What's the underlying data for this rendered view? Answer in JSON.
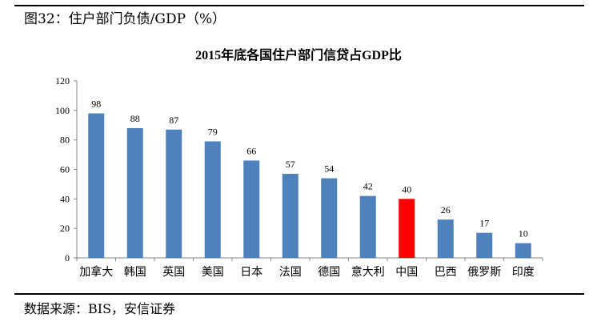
{
  "caption": "图32：住户部门负债/GDP（%）",
  "source": "数据来源：BIS，安信证券",
  "colors": {
    "bar": "#4F81BD",
    "highlight": "#FF0000"
  },
  "chart_data": {
    "type": "bar",
    "title": "2015年底各国住户部门信贷占GDP比",
    "categories": [
      "加拿大",
      "韩国",
      "英国",
      "美国",
      "日本",
      "法国",
      "德国",
      "意大利",
      "中国",
      "巴西",
      "俄罗斯",
      "印度"
    ],
    "values": [
      98,
      88,
      87,
      79,
      66,
      57,
      54,
      42,
      40,
      26,
      17,
      10
    ],
    "highlight_category": "中国",
    "ylim": [
      0,
      120
    ],
    "yticks": [
      0,
      20,
      40,
      60,
      80,
      100,
      120
    ],
    "grid": false,
    "data_labels": true
  }
}
